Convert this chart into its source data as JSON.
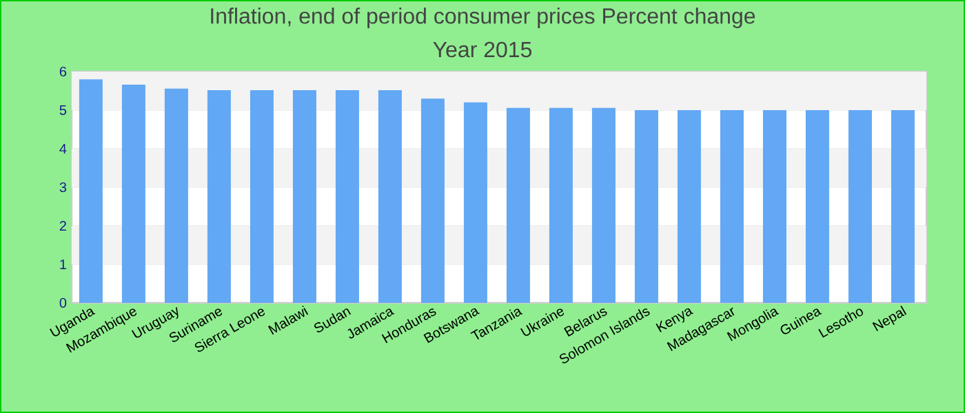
{
  "chart_data": {
    "type": "bar",
    "title": "Inflation, end of period consumer prices  Percent change",
    "subtitle": "Year 2015",
    "categories": [
      "Uganda",
      "Mozambique",
      "Uruguay",
      "Suriname",
      "Sierra Leone",
      "Malawi",
      "Sudan",
      "Jamaica",
      "Honduras",
      "Botswana",
      "Tanzania",
      "Ukraine",
      "Belarus",
      "Solomon Islands",
      "Kenya",
      "Madagascar",
      "Mongolia",
      "Guinea",
      "Lesotho",
      "Nepal"
    ],
    "values": [
      5.8,
      5.66,
      5.56,
      5.52,
      5.52,
      5.52,
      5.52,
      5.52,
      5.3,
      5.2,
      5.06,
      5.06,
      5.06,
      5.0,
      5.0,
      5.0,
      5.0,
      5.0,
      5.0,
      5.0
    ],
    "color": "#62a8f4",
    "ylim": [
      0,
      6
    ],
    "yticks": [
      0,
      1,
      2,
      3,
      4,
      5,
      6
    ],
    "grid": "y"
  }
}
